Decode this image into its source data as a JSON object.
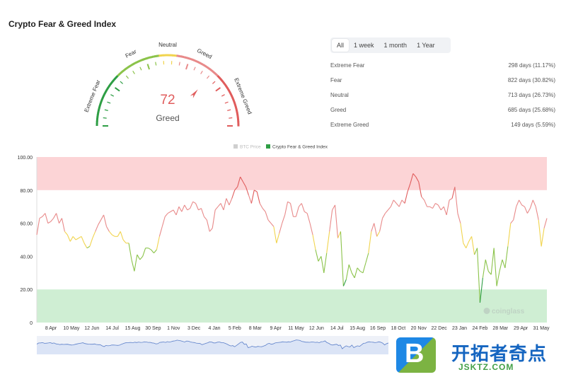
{
  "title": "Crypto Fear & Greed Index",
  "gauge": {
    "value": "72",
    "label": "Greed",
    "zone_labels": [
      "Extreme Fear",
      "Fear",
      "Neutral",
      "Greed",
      "Extreme Greed"
    ],
    "value_color": "#e05c5c"
  },
  "tabs": [
    {
      "label": "All",
      "active": true
    },
    {
      "label": "1 week",
      "active": false
    },
    {
      "label": "1 month",
      "active": false
    },
    {
      "label": "1 Year",
      "active": false
    }
  ],
  "stats": [
    {
      "name": "Extreme Fear",
      "value": "298 days (11.17%)"
    },
    {
      "name": "Fear",
      "value": "822 days (30.82%)"
    },
    {
      "name": "Neutral",
      "value": "713 days (26.73%)"
    },
    {
      "name": "Greed",
      "value": "685 days (25.68%)"
    },
    {
      "name": "Extreme Greed",
      "value": "149 days (5.59%)"
    }
  ],
  "colors": {
    "extreme_fear": "#2e9e45",
    "fear": "#8bc34a",
    "neutral": "#f1d44e",
    "greed": "#e88a8a",
    "extreme_greed": "#e05c5c",
    "zone_high": "#fcd4d6",
    "zone_low": "#cfeed3"
  },
  "chart_data": {
    "type": "line",
    "legend": [
      "BTC Price",
      "Crypto Fear & Greed Index"
    ],
    "legend_placement": "top-center",
    "y_ticks": [
      "0",
      "20.00",
      "40.00",
      "60.00",
      "80.00",
      "100.00"
    ],
    "ylim": [
      0,
      100
    ],
    "x_ticks": [
      "8 Apr",
      "10 May",
      "12 Jun",
      "14 Jul",
      "15 Aug",
      "30 Sep",
      "1 Nov",
      "3 Dec",
      "4 Jan",
      "5 Feb",
      "8 Mar",
      "9 Apr",
      "11 May",
      "12 Jun",
      "14 Jul",
      "15 Aug",
      "16 Sep",
      "18 Oct",
      "20 Nov",
      "22 Dec",
      "23 Jan",
      "24 Feb",
      "28 Mar",
      "29 Apr",
      "31 May"
    ],
    "bands": [
      {
        "from": 80,
        "to": 100,
        "zone": "extreme greed"
      },
      {
        "from": 0,
        "to": 20,
        "zone": "extreme fear"
      }
    ],
    "watermark": "coinglass",
    "series": [
      {
        "name": "Crypto Fear & Greed Index",
        "values": [
          53,
          63,
          64,
          66,
          60,
          61,
          63,
          66,
          60,
          63,
          55,
          53,
          49,
          52,
          50,
          51,
          52,
          48,
          45,
          46,
          51,
          55,
          59,
          62,
          65,
          58,
          55,
          53,
          52,
          52,
          55,
          50,
          48,
          48,
          38,
          31,
          41,
          38,
          40,
          45,
          45,
          44,
          42,
          44,
          52,
          58,
          64,
          66,
          67,
          68,
          65,
          70,
          67,
          71,
          68,
          69,
          73,
          72,
          68,
          69,
          64,
          62,
          55,
          57,
          68,
          70,
          72,
          68,
          75,
          71,
          75,
          80,
          82,
          88,
          85,
          82,
          77,
          72,
          80,
          79,
          72,
          69,
          67,
          62,
          60,
          58,
          48,
          54,
          60,
          65,
          73,
          72,
          64,
          64,
          70,
          72,
          67,
          66,
          60,
          53,
          44,
          37,
          40,
          30,
          42,
          55,
          68,
          71,
          51,
          55,
          22,
          26,
          35,
          30,
          27,
          33,
          31,
          30,
          36,
          42,
          55,
          60,
          52,
          55,
          63,
          66,
          68,
          70,
          74,
          72,
          70,
          74,
          72,
          79,
          84,
          90,
          88,
          85,
          76,
          74,
          70,
          70,
          69,
          72,
          71,
          68,
          70,
          65,
          74,
          75,
          82,
          66,
          60,
          48,
          45,
          49,
          52,
          41,
          45,
          12,
          27,
          38,
          31,
          29,
          45,
          22,
          31,
          38,
          33,
          46,
          60,
          62,
          70,
          74,
          71,
          70,
          66,
          69,
          74,
          70,
          62,
          46,
          57,
          63
        ]
      }
    ]
  }
}
